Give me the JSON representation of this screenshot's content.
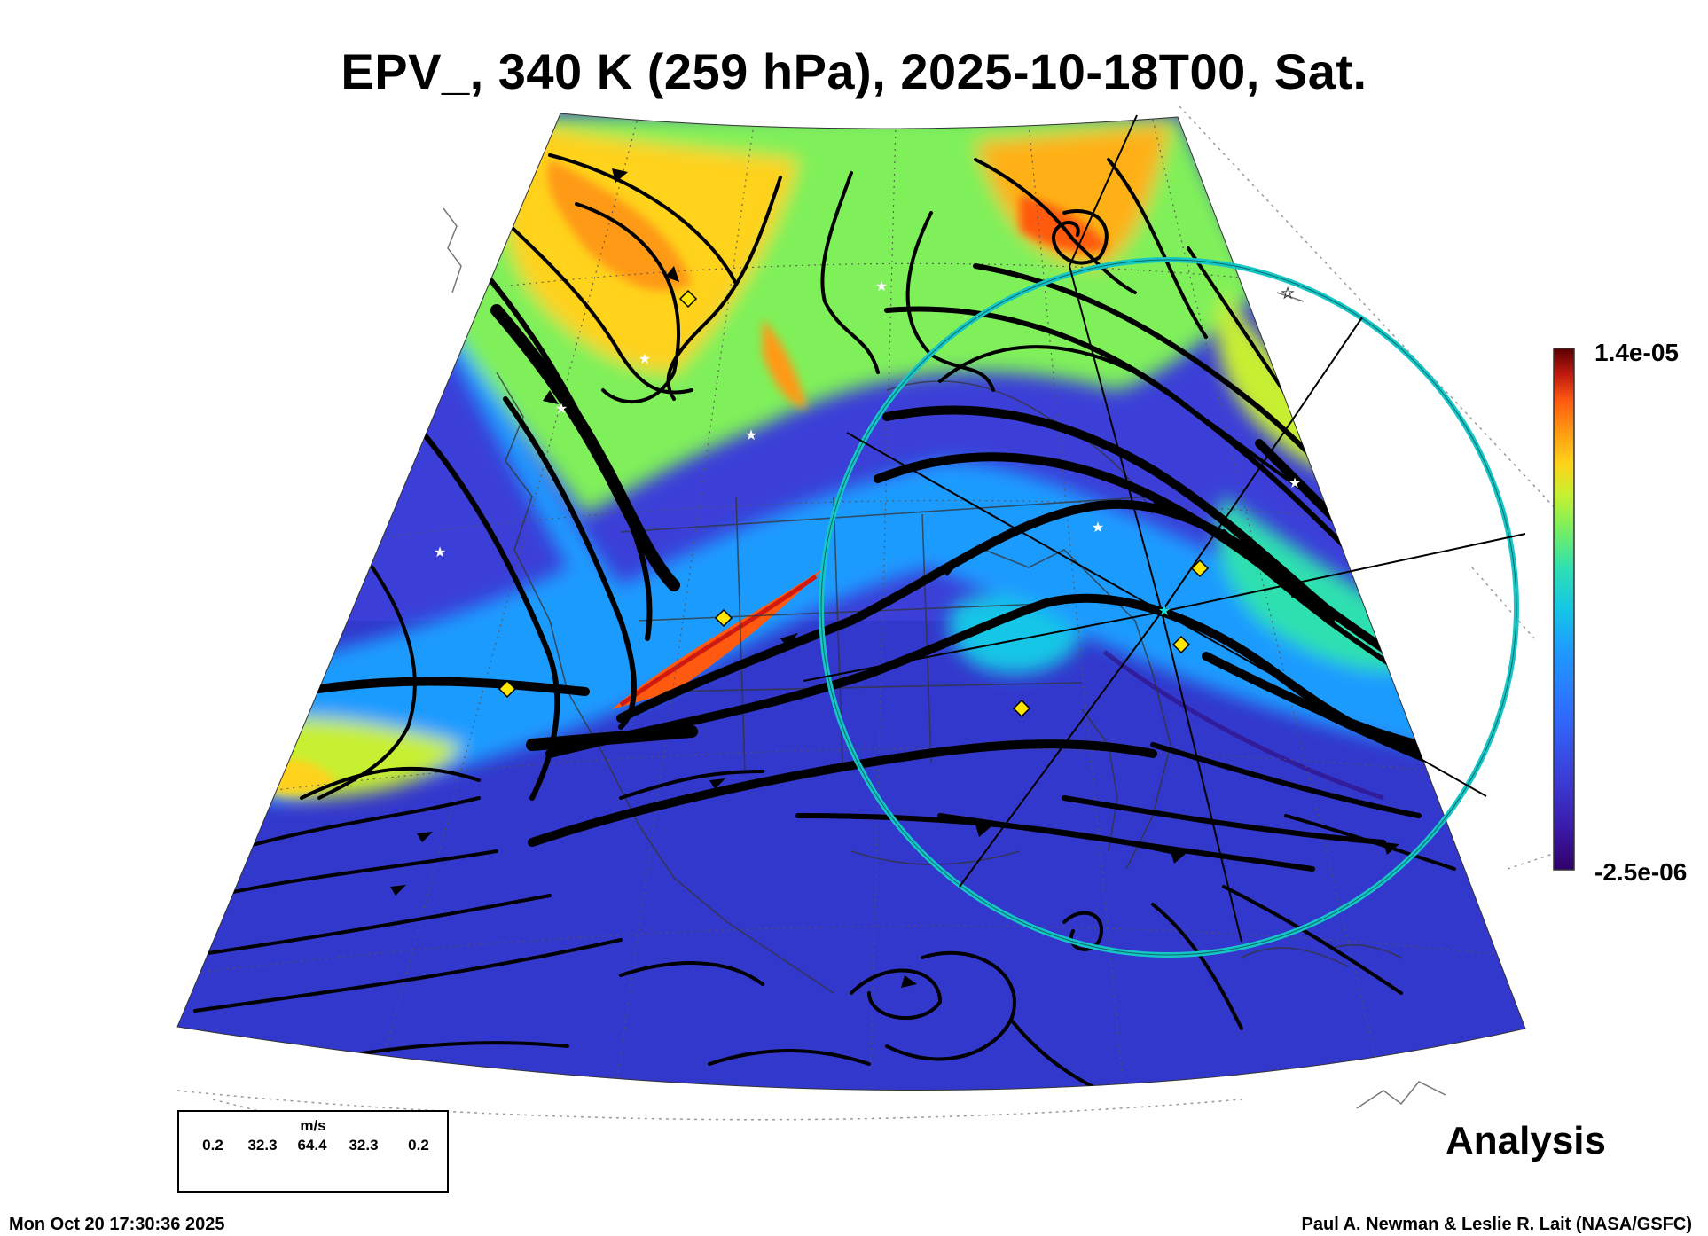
{
  "title": "EPV_, 340 K (259 hPa), 2025-10-18T00, Sat.",
  "colorbar": {
    "max_label": "1.4e-05",
    "min_label": "-2.5e-06",
    "colors": [
      "#30006a",
      "#3a1aa8",
      "#3b3fd8",
      "#2f6cff",
      "#1e9bff",
      "#14c6e6",
      "#2fe0b0",
      "#7ff05a",
      "#c8f030",
      "#ffd21a",
      "#ff9a12",
      "#ff5a10",
      "#e01e10",
      "#a40a08",
      "#5a0000"
    ]
  },
  "wind_legend": {
    "unit": "m/s",
    "values": [
      "0.2",
      "32.3",
      "64.4",
      "32.3",
      "0.2"
    ]
  },
  "label_analysis": "Analysis",
  "footer_left": "Mon Oct 20 17:30:36 2025",
  "footer_right": "Paul A. Newman & Leslie R. Lait (NASA/GSFC)",
  "markers": {
    "diamond_color": "#ffe600",
    "star_color": "#ffffff",
    "ring_color": "#16c6c6"
  }
}
